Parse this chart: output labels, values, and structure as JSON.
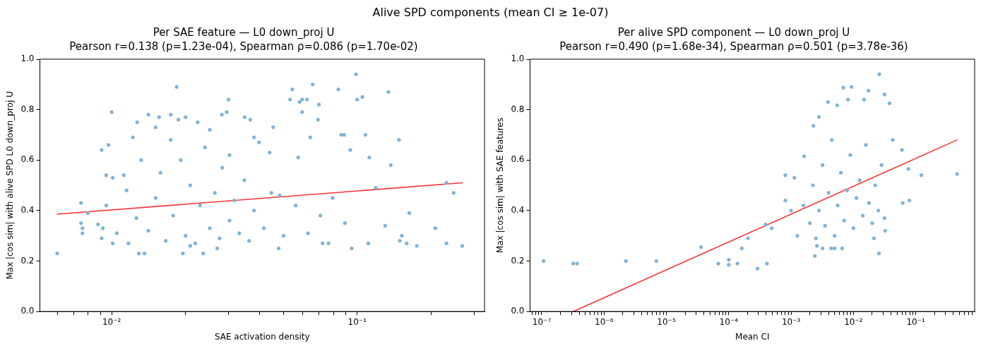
{
  "chart_data": [
    {
      "type": "scatter",
      "title": "Per SAE feature — L0 down_proj U",
      "subtitle": "Pearson r=0.138 (p=1.23e-04), Spearman ρ=0.086 (p=1.70e-02)",
      "xlabel": "SAE activation density",
      "ylabel": "Max |cos sim| with alive SPD L0 down_proj U",
      "annotations": [
        "Alive SPD components (mean CI ≥ 1e-07)"
      ],
      "log": "x",
      "grid": false,
      "legend": false,
      "marker": "circle",
      "xlim": [
        0.0051,
        0.33
      ],
      "ylim": [
        0,
        1
      ],
      "xticks": [
        {
          "value": 0.006,
          "label": null
        },
        {
          "value": 0.007,
          "label": null
        },
        {
          "value": 0.008,
          "label": null
        },
        {
          "value": 0.009,
          "label": null
        },
        {
          "value": 0.01,
          "label": "10⁻²"
        },
        {
          "value": 0.02,
          "label": null
        },
        {
          "value": 0.03,
          "label": null
        },
        {
          "value": 0.04,
          "label": null
        },
        {
          "value": 0.05,
          "label": null
        },
        {
          "value": 0.06,
          "label": null
        },
        {
          "value": 0.07,
          "label": null
        },
        {
          "value": 0.08,
          "label": null
        },
        {
          "value": 0.09,
          "label": null
        },
        {
          "value": 0.1,
          "label": "10⁻¹"
        },
        {
          "value": 0.2,
          "label": null
        },
        {
          "value": 0.3,
          "label": null
        }
      ],
      "yticks": [
        {
          "value": 0,
          "label": "0.0"
        },
        {
          "value": 0.2,
          "label": "0.2"
        },
        {
          "value": 0.4,
          "label": "0.4"
        },
        {
          "value": 0.6,
          "label": "0.6"
        },
        {
          "value": 0.8,
          "label": "0.8"
        },
        {
          "value": 1,
          "label": "1.0"
        }
      ],
      "series": [
        {
          "color": "#7fb2d6",
          "x": [
            0.006,
            0.0075,
            0.0075,
            0.0076,
            0.0076,
            0.008,
            0.0088,
            0.0091,
            0.0091,
            0.0092,
            0.0095,
            0.0095,
            0.0097,
            0.01,
            0.0101,
            0.0101,
            0.0105,
            0.0112,
            0.0117,
            0.0127,
            0.0122,
            0.0129,
            0.0136,
            0.0141,
            0.0151,
            0.0156,
            0.0174,
            0.0184,
            0.0187,
            0.02,
            0.0195,
            0.0236,
            0.0224,
            0.0281,
            0.0294,
            0.0299,
            0.0348,
            0.0367,
            0.038,
            0.0398,
            0.0455,
            0.044,
            0.0479,
            0.0483,
            0.0533,
            0.0544,
            0.0582,
            0.0597,
            0.0597,
            0.0624,
            0.0659,
            0.0698,
            0.0644,
            0.0575,
            0.0692,
            0.0723,
            0.0764,
            0.0838,
            0.0861,
            0.0885,
            0.0938,
            0.095,
            0.0989,
            0.1,
            0.105,
            0.108,
            0.111,
            0.112,
            0.119,
            0.13,
            0.134,
            0.137,
            0.148,
            0.149,
            0.152,
            0.159,
            0.163,
            0.175,
            0.208,
            0.231,
            0.247,
            0.231,
            0.268,
            0.0141,
            0.0151,
            0.0158,
            0.0166,
            0.0178,
            0.0191,
            0.02,
            0.0209,
            0.0219,
            0.0229,
            0.024,
            0.0251,
            0.0263,
            0.0275,
            0.0282,
            0.0302,
            0.0316,
            0.0331,
            0.0347,
            0.0363,
            0.038,
            0.0417,
            0.0447,
            0.0501,
            0.0562,
            0.0631,
            0.0708,
            0.0794,
            0.0891,
            0.0126,
            0.0115,
            0.0132,
            0.0174,
            0.0251,
            0.0302,
            0.0209,
            0.0269
          ],
          "values": [
            0.23,
            0.43,
            0.35,
            0.33,
            0.31,
            0.39,
            0.345,
            0.64,
            0.29,
            0.33,
            0.54,
            0.42,
            0.66,
            0.79,
            0.53,
            0.27,
            0.31,
            0.54,
            0.27,
            0.75,
            0.69,
            0.23,
            0.23,
            0.78,
            0.73,
            0.77,
            0.78,
            0.89,
            0.76,
            0.77,
            0.23,
            0.23,
            0.75,
            0.78,
            0.79,
            0.84,
            0.77,
            0.76,
            0.69,
            0.67,
            0.73,
            0.63,
            0.25,
            0.46,
            0.84,
            0.88,
            0.83,
            0.79,
            0.84,
            0.84,
            0.9,
            0.82,
            0.69,
            0.61,
            0.76,
            0.27,
            0.27,
            0.88,
            0.7,
            0.7,
            0.64,
            0.25,
            0.94,
            0.84,
            0.85,
            0.7,
            0.27,
            0.61,
            0.49,
            0.34,
            0.87,
            0.58,
            0.68,
            0.28,
            0.3,
            0.27,
            0.39,
            0.26,
            0.33,
            0.27,
            0.47,
            0.51,
            0.26,
            0.32,
            0.45,
            0.55,
            0.28,
            0.38,
            0.6,
            0.3,
            0.5,
            0.27,
            0.42,
            0.65,
            0.33,
            0.47,
            0.29,
            0.57,
            0.36,
            0.44,
            0.31,
            0.52,
            0.28,
            0.4,
            0.33,
            0.47,
            0.3,
            0.42,
            0.31,
            0.38,
            0.45,
            0.35,
            0.37,
            0.48,
            0.6,
            0.68,
            0.72,
            0.62,
            0.26,
            0.25
          ]
        },
        {
          "type": "line",
          "marker": "none",
          "line_style": "solid",
          "color": "#ff3333",
          "x": [
            0.006,
            0.268
          ],
          "values": [
            0.386,
            0.51
          ]
        }
      ]
    },
    {
      "type": "scatter",
      "title": "Per alive SPD component — L0 down_proj U",
      "subtitle": "Pearson r=0.490 (p=1.68e-34), Spearman ρ=0.501 (p=3.78e-36)",
      "xlabel": "Mean CI",
      "ylabel": "Max |cos sim| with SAE features",
      "log": "x",
      "grid": false,
      "legend": false,
      "marker": "circle",
      "xlim": [
        6.5e-08,
        0.88
      ],
      "ylim": [
        0,
        1
      ],
      "xticks": [
        {
          "value": 7e-08,
          "label": null
        },
        {
          "value": 8e-08,
          "label": null
        },
        {
          "value": 9e-08,
          "label": null
        },
        {
          "value": 1e-07,
          "label": "10⁻⁷"
        },
        {
          "value": 2e-07,
          "label": null
        },
        {
          "value": 3e-07,
          "label": null
        },
        {
          "value": 4e-07,
          "label": null
        },
        {
          "value": 5e-07,
          "label": null
        },
        {
          "value": 6e-07,
          "label": null
        },
        {
          "value": 7e-07,
          "label": null
        },
        {
          "value": 8e-07,
          "label": null
        },
        {
          "value": 9e-07,
          "label": null
        },
        {
          "value": 1e-06,
          "label": "10⁻⁶"
        },
        {
          "value": 2e-06,
          "label": null
        },
        {
          "value": 3e-06,
          "label": null
        },
        {
          "value": 4e-06,
          "label": null
        },
        {
          "value": 5e-06,
          "label": null
        },
        {
          "value": 6e-06,
          "label": null
        },
        {
          "value": 7e-06,
          "label": null
        },
        {
          "value": 8e-06,
          "label": null
        },
        {
          "value": 9e-06,
          "label": null
        },
        {
          "value": 1e-05,
          "label": "10⁻⁵"
        },
        {
          "value": 2e-05,
          "label": null
        },
        {
          "value": 3e-05,
          "label": null
        },
        {
          "value": 4e-05,
          "label": null
        },
        {
          "value": 5e-05,
          "label": null
        },
        {
          "value": 6e-05,
          "label": null
        },
        {
          "value": 7e-05,
          "label": null
        },
        {
          "value": 8e-05,
          "label": null
        },
        {
          "value": 9e-05,
          "label": null
        },
        {
          "value": 0.0001,
          "label": "10⁻⁴"
        },
        {
          "value": 0.0002,
          "label": null
        },
        {
          "value": 0.0003,
          "label": null
        },
        {
          "value": 0.0004,
          "label": null
        },
        {
          "value": 0.0005,
          "label": null
        },
        {
          "value": 0.0006,
          "label": null
        },
        {
          "value": 0.0007,
          "label": null
        },
        {
          "value": 0.0008,
          "label": null
        },
        {
          "value": 0.0009,
          "label": null
        },
        {
          "value": 0.001,
          "label": "10⁻³"
        },
        {
          "value": 0.002,
          "label": null
        },
        {
          "value": 0.003,
          "label": null
        },
        {
          "value": 0.004,
          "label": null
        },
        {
          "value": 0.005,
          "label": null
        },
        {
          "value": 0.006,
          "label": null
        },
        {
          "value": 0.007,
          "label": null
        },
        {
          "value": 0.008,
          "label": null
        },
        {
          "value": 0.009,
          "label": null
        },
        {
          "value": 0.01,
          "label": "10⁻²"
        },
        {
          "value": 0.02,
          "label": null
        },
        {
          "value": 0.03,
          "label": null
        },
        {
          "value": 0.04,
          "label": null
        },
        {
          "value": 0.05,
          "label": null
        },
        {
          "value": 0.06,
          "label": null
        },
        {
          "value": 0.07,
          "label": null
        },
        {
          "value": 0.08,
          "label": null
        },
        {
          "value": 0.09,
          "label": null
        },
        {
          "value": 0.1,
          "label": "10⁻¹"
        },
        {
          "value": 0.2,
          "label": null
        },
        {
          "value": 0.3,
          "label": null
        },
        {
          "value": 0.4,
          "label": null
        },
        {
          "value": 0.5,
          "label": null
        },
        {
          "value": 0.6,
          "label": null
        },
        {
          "value": 0.7,
          "label": null
        },
        {
          "value": 0.8,
          "label": null
        }
      ],
      "yticks": [
        {
          "value": 0,
          "label": "0.0"
        },
        {
          "value": 0.2,
          "label": "0.2"
        },
        {
          "value": 0.4,
          "label": "0.4"
        },
        {
          "value": 0.6,
          "label": "0.6"
        },
        {
          "value": 0.8,
          "label": "0.8"
        },
        {
          "value": 1,
          "label": "1.0"
        }
      ],
      "series": [
        {
          "color": "#7fb2d6",
          "x": [
            1.07e-07,
            3.2e-07,
            3.7e-07,
            2.24e-06,
            6.9e-06,
            3.6e-05,
            6.8e-05,
            0.0001,
            0.0001,
            0.000138,
            0.000162,
            0.000204,
            0.00029,
            0.00039,
            0.00041,
            0.00049,
            0.00081,
            0.00081,
            0.001,
            0.00113,
            0.00162,
            0.00228,
            0.0028,
            0.0039,
            0.0055,
            0.0069,
            0.0093,
            0.0082,
            0.0148,
            0.0174,
            0.026,
            0.0316,
            0.038,
            0.0257,
            0.0427,
            0.06,
            0.076,
            0.079,
            0.123,
            0.46,
            0.0617,
            0.0024,
            0.0026,
            0.0044,
            0.0066,
            0.0214,
            0.0324,
            0.00126,
            0.00158,
            0.002,
            0.00224,
            0.0025,
            0.0028,
            0.0032,
            0.0035,
            0.004,
            0.0045,
            0.005,
            0.0056,
            0.0063,
            0.0071,
            0.0079,
            0.0089,
            0.01,
            0.0112,
            0.0126,
            0.0141,
            0.0158,
            0.0178,
            0.02,
            0.0224,
            0.0251,
            0.0282,
            0.0316,
            0.0032,
            0.005
          ],
          "values": [
            0.2,
            0.19,
            0.19,
            0.2,
            0.2,
            0.255,
            0.19,
            0.185,
            0.205,
            0.19,
            0.25,
            0.29,
            0.17,
            0.345,
            0.19,
            0.33,
            0.54,
            0.44,
            0.4,
            0.53,
            0.615,
            0.736,
            0.771,
            0.83,
            0.817,
            0.887,
            0.89,
            0.84,
            0.84,
            0.875,
            0.94,
            0.86,
            0.825,
            0.23,
            0.68,
            0.64,
            0.565,
            0.44,
            0.54,
            0.545,
            0.43,
            0.22,
            0.26,
            0.25,
            0.25,
            0.29,
            0.32,
            0.3,
            0.42,
            0.35,
            0.5,
            0.29,
            0.4,
            0.58,
            0.34,
            0.47,
            0.68,
            0.3,
            0.42,
            0.55,
            0.36,
            0.48,
            0.62,
            0.33,
            0.45,
            0.52,
            0.38,
            0.66,
            0.43,
            0.35,
            0.5,
            0.4,
            0.58,
            0.37,
            0.25,
            0.25
          ]
        },
        {
          "type": "line",
          "marker": "none",
          "line_style": "solid",
          "color": "#ff3333",
          "x": [
            3.2e-07,
            0.46
          ],
          "values": [
            0,
            0.68
          ]
        }
      ]
    }
  ]
}
